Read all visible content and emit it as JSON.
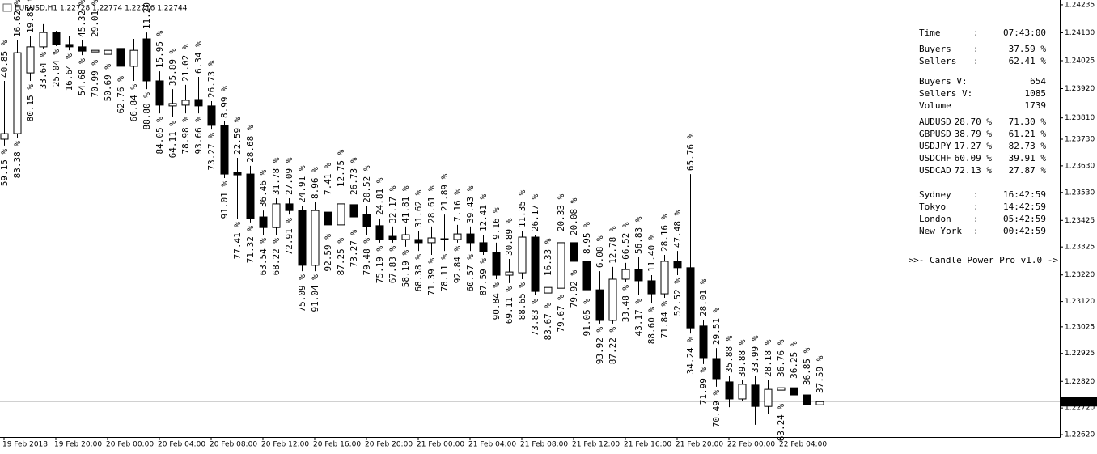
{
  "chart_data": {
    "type": "candlestick",
    "title": "EURUSD,H1  1.22728 1.22774 1.22716 1.22744",
    "categories": [
      "19 Feb 2018",
      null,
      null,
      null,
      "19 Feb 20:00",
      null,
      null,
      null,
      "20 Feb 00:00",
      null,
      null,
      null,
      "20 Feb 04:00",
      null,
      null,
      null,
      "20 Feb 08:00",
      null,
      null,
      null,
      "20 Feb 12:00",
      null,
      null,
      null,
      "20 Feb 16:00",
      null,
      null,
      null,
      "20 Feb 20:00",
      null,
      null,
      null,
      "21 Feb 00:00",
      null,
      null,
      null,
      "21 Feb 04:00",
      null,
      null,
      null,
      "21 Feb 08:00",
      null,
      null,
      null,
      "21 Feb 12:00",
      null,
      null,
      null,
      "21 Feb 16:00",
      null,
      null,
      null,
      "21 Feb 20:00",
      null,
      null,
      null,
      "22 Feb 00:00",
      null,
      null,
      null,
      "22 Feb 04:00",
      null,
      null,
      null
    ],
    "open": [
      1.2373,
      1.23751,
      1.23979,
      1.24077,
      1.24131,
      1.24086,
      1.24077,
      1.24058,
      1.24049,
      1.24071,
      1.24004,
      1.24107,
      1.23949,
      1.23855,
      1.23858,
      1.23879,
      1.23855,
      1.23782,
      1.23605,
      1.23599,
      1.23438,
      1.23398,
      1.23487,
      1.23462,
      1.23256,
      1.23456,
      1.23408,
      1.23484,
      1.23447,
      1.23405,
      1.23365,
      1.23353,
      1.23353,
      1.23341,
      1.23353,
      1.23353,
      1.23374,
      1.23341,
      1.23304,
      1.23219,
      1.23228,
      1.23362,
      1.23152,
      1.2317,
      1.23341,
      1.23271,
      1.23164,
      1.23049,
      1.23204,
      1.2324,
      1.23198,
      1.23149,
      1.23271,
      1.23247,
      1.23028,
      1.22906,
      1.22818,
      1.22754,
      1.22806,
      1.22726,
      1.22787,
      1.22796,
      1.22769,
      1.22732
    ],
    "high": [
      1.23949,
      1.24101,
      1.24116,
      1.24162,
      1.24137,
      1.24116,
      1.24101,
      1.24101,
      1.24086,
      1.24116,
      1.24107,
      1.24131,
      1.23985,
      1.23918,
      1.23934,
      1.23964,
      1.23873,
      1.23797,
      1.2366,
      1.2363,
      1.23462,
      1.23508,
      1.23508,
      1.23478,
      1.23493,
      1.23508,
      1.23538,
      1.23508,
      1.23478,
      1.23432,
      1.23402,
      1.23402,
      1.23386,
      1.23402,
      1.23447,
      1.23408,
      1.23402,
      1.23371,
      1.23341,
      1.2328,
      1.23386,
      1.23371,
      1.23204,
      1.23371,
      1.23356,
      1.23286,
      1.23234,
      1.2325,
      1.23265,
      1.23286,
      1.23219,
      1.23295,
      1.2331,
      1.23599,
      1.23052,
      1.22945,
      1.22839,
      1.22824,
      1.22839,
      1.22824,
      1.22824,
      1.22818,
      1.22793,
      1.22763
    ],
    "low": [
      1.23706,
      1.23736,
      1.23949,
      1.24071,
      1.2408,
      1.24064,
      1.24046,
      1.2404,
      1.24025,
      1.23979,
      1.23949,
      1.23918,
      1.23827,
      1.23812,
      1.23827,
      1.23827,
      1.23766,
      1.23584,
      1.23432,
      1.23417,
      1.23371,
      1.23371,
      1.23447,
      1.23234,
      1.23234,
      1.23386,
      1.23371,
      1.23402,
      1.23371,
      1.23341,
      1.23341,
      1.23326,
      1.2331,
      1.23295,
      1.2331,
      1.23341,
      1.2331,
      1.23295,
      1.23204,
      1.23189,
      1.23204,
      1.23143,
      1.23128,
      1.23158,
      1.2325,
      1.23143,
      1.23037,
      1.23037,
      1.23195,
      1.23143,
      1.23113,
      1.23134,
      1.23219,
      1.23,
      1.22885,
      1.228,
      1.22723,
      1.22748,
      1.22657,
      1.22696,
      1.22748,
      1.22732,
      1.22726,
      1.22717
    ],
    "close": [
      1.23751,
      1.24055,
      1.24077,
      1.24131,
      1.24086,
      1.24077,
      1.24061,
      1.24064,
      1.24064,
      1.24004,
      1.24064,
      1.23949,
      1.23858,
      1.23864,
      1.23876,
      1.23855,
      1.23782,
      1.23599,
      1.23596,
      1.23432,
      1.23398,
      1.23487,
      1.23462,
      1.23256,
      1.23462,
      1.23408,
      1.23487,
      1.23438,
      1.23402,
      1.23353,
      1.23353,
      1.23371,
      1.23341,
      1.23359,
      1.23356,
      1.23374,
      1.23341,
      1.23307,
      1.23219,
      1.23231,
      1.23362,
      1.23158,
      1.23173,
      1.23341,
      1.23271,
      1.23164,
      1.23049,
      1.23204,
      1.2324,
      1.23198,
      1.23149,
      1.23271,
      1.23247,
      1.23021,
      1.22909,
      1.2283,
      1.22754,
      1.22809,
      1.22726,
      1.2279,
      1.22796,
      1.22769,
      1.22732,
      1.22744
    ],
    "buyers": {
      "color": "#0000c0",
      "values": [
        40.85,
        16.62,
        19.85,
        null,
        null,
        null,
        45.32,
        29.01,
        null,
        null,
        null,
        11.2,
        15.95,
        35.89,
        21.02,
        6.34,
        26.73,
        8.99,
        22.59,
        28.68,
        36.46,
        31.78,
        27.09,
        24.91,
        8.96,
        7.41,
        12.75,
        26.73,
        20.52,
        24.81,
        32.17,
        41.81,
        31.62,
        28.61,
        21.89,
        7.16,
        39.43,
        12.41,
        9.16,
        30.89,
        11.35,
        26.17,
        16.33,
        20.33,
        20.08,
        8.95,
        6.08,
        12.78,
        66.52,
        56.83,
        11.4,
        28.16,
        47.48,
        65.76,
        28.01,
        29.51,
        35.88,
        39.88,
        33.99,
        28.18,
        36.76,
        36.25,
        36.85,
        37.59
      ],
      "value_labels": [
        "40.85 %",
        "16.62 %",
        "19.85 %",
        null,
        null,
        null,
        "45.32 %",
        "29.01 %",
        null,
        null,
        null,
        "11.20 %",
        "15.95 %",
        "35.89 %",
        "21.02 %",
        "6.34 %",
        "26.73 %",
        "8.99 %",
        "22.59 %",
        "28.68 %",
        "36.46 %",
        "31.78 %",
        "27.09 %",
        "24.91 %",
        "8.96 %",
        "7.41 %",
        "12.75 %",
        "26.73 %",
        "20.52 %",
        "24.81 %",
        "32.17 %",
        "41.81 %",
        "31.62 %",
        "28.61 %",
        "21.89 %",
        "7.16 %",
        "39.43 %",
        "12.41 %",
        "9.16 %",
        "30.89 %",
        "11.35 %",
        "26.17 %",
        "16.33 %",
        "20.33 %",
        "20.08 %",
        "8.95 %",
        "6.08 %",
        "12.78 %",
        "66.52 %",
        "56.83 %",
        "11.40 %",
        "28.16 %",
        "47.48 %",
        "65.76 %",
        "28.01 %",
        "29.51 %",
        "35.88 %",
        "39.88 %",
        "33.99 %",
        "28.18 %",
        "36.76 %",
        "36.25 %",
        "36.85 %",
        "37.59 %"
      ]
    },
    "sellers": {
      "color": "#d00000",
      "values": [
        59.15,
        83.38,
        80.15,
        33.64,
        25.04,
        16.64,
        54.68,
        70.99,
        50.69,
        62.76,
        66.84,
        88.8,
        84.05,
        64.11,
        78.98,
        93.66,
        73.27,
        91.01,
        77.41,
        71.32,
        63.54,
        68.22,
        72.91,
        75.09,
        91.04,
        92.59,
        87.25,
        73.27,
        79.48,
        75.19,
        67.83,
        58.19,
        68.38,
        71.39,
        78.11,
        92.84,
        60.57,
        87.59,
        90.84,
        69.11,
        88.65,
        73.83,
        83.67,
        79.67,
        79.92,
        91.05,
        93.92,
        87.22,
        33.48,
        43.17,
        88.6,
        71.84,
        52.52,
        34.24,
        71.99,
        70.49,
        null,
        null,
        null,
        null,
        63.24,
        null,
        null,
        null
      ],
      "value_labels": [
        "59.15 %",
        "83.38 %",
        "80.15 %",
        "33.64 %",
        "25.04 %",
        "16.64 %",
        "54.68 %",
        "70.99 %",
        "50.69 %",
        "62.76 %",
        "66.84 %",
        "88.80 %",
        "84.05 %",
        "64.11 %",
        "78.98 %",
        "93.66 %",
        "73.27 %",
        "91.01 %",
        "77.41 %",
        "71.32 %",
        "63.54 %",
        "68.22 %",
        "72.91 %",
        "75.09 %",
        "91.04 %",
        "92.59 %",
        "87.25 %",
        "73.27 %",
        "79.48 %",
        "75.19 %",
        "67.83 %",
        "58.19 %",
        "68.38 %",
        "71.39 %",
        "78.11 %",
        "92.84 %",
        "60.57 %",
        "87.59 %",
        "90.84 %",
        "69.11 %",
        "88.65 %",
        "73.83 %",
        "83.67 %",
        "79.67 %",
        "79.92 %",
        "91.05 %",
        "93.92 %",
        "87.22 %",
        "33.48 %",
        "43.17 %",
        "88.60 %",
        "71.84 %",
        "52.52 %",
        "34.24 %",
        "71.99 %",
        "70.49 %",
        null,
        null,
        null,
        null,
        "63.24 %",
        null,
        null,
        null
      ]
    },
    "ylim": [
      1.22611,
      1.24253
    ],
    "yticks": [
      1.24235,
      {
        "value": 1.2413,
        "label": "1.24130"
      },
      1.24025,
      {
        "value": 1.2392,
        "label": "1.23920"
      },
      {
        "value": 1.2381,
        "label": "1.23810"
      },
      {
        "value": 1.2373,
        "label": "1.23730"
      },
      {
        "value": 1.2363,
        "label": "1.23630"
      },
      {
        "value": 1.2353,
        "label": "1.23530"
      },
      1.23425,
      1.23325,
      {
        "value": 1.2322,
        "label": "1.23220"
      },
      {
        "value": 1.2312,
        "label": "1.23120"
      },
      1.23025,
      1.22925,
      {
        "value": 1.2282,
        "label": "1.22820"
      },
      {
        "value": 1.2272,
        "label": "1.22720"
      },
      {
        "value": 1.2262,
        "label": "1.22620"
      }
    ],
    "current_price": 1.22744,
    "grid": false
  },
  "panel": {
    "time": [
      "Time",
      ":",
      "07:43:00"
    ],
    "stats": [
      [
        "Buyers",
        ":",
        "37.59 %"
      ],
      [
        "Sellers",
        ":",
        "62.41 %"
      ]
    ],
    "volume": [
      [
        "Buyers  V:",
        "654"
      ],
      [
        "Sellers V:",
        "1085"
      ],
      [
        "Volume",
        "1739"
      ]
    ],
    "pairs": [
      [
        "AUDUSD",
        "28.70 %",
        "71.30 %"
      ],
      [
        "GBPUSD",
        "38.79 %",
        "61.21 %"
      ],
      [
        "USDJPY",
        "17.27 %",
        "82.73 %"
      ],
      [
        "USDCHF",
        "60.09 %",
        "39.91 %"
      ],
      [
        "USDCAD",
        "72.13 %",
        "27.87 %"
      ]
    ],
    "sessions": [
      [
        "Sydney",
        ":",
        "16:42:59"
      ],
      [
        "Tokyo",
        ":",
        "14:42:59"
      ],
      [
        "London",
        ":",
        "05:42:59"
      ],
      [
        "New York",
        ":",
        "00:42:59"
      ]
    ],
    "footer": ">>- Candle Power Pro v1.0 ->"
  }
}
